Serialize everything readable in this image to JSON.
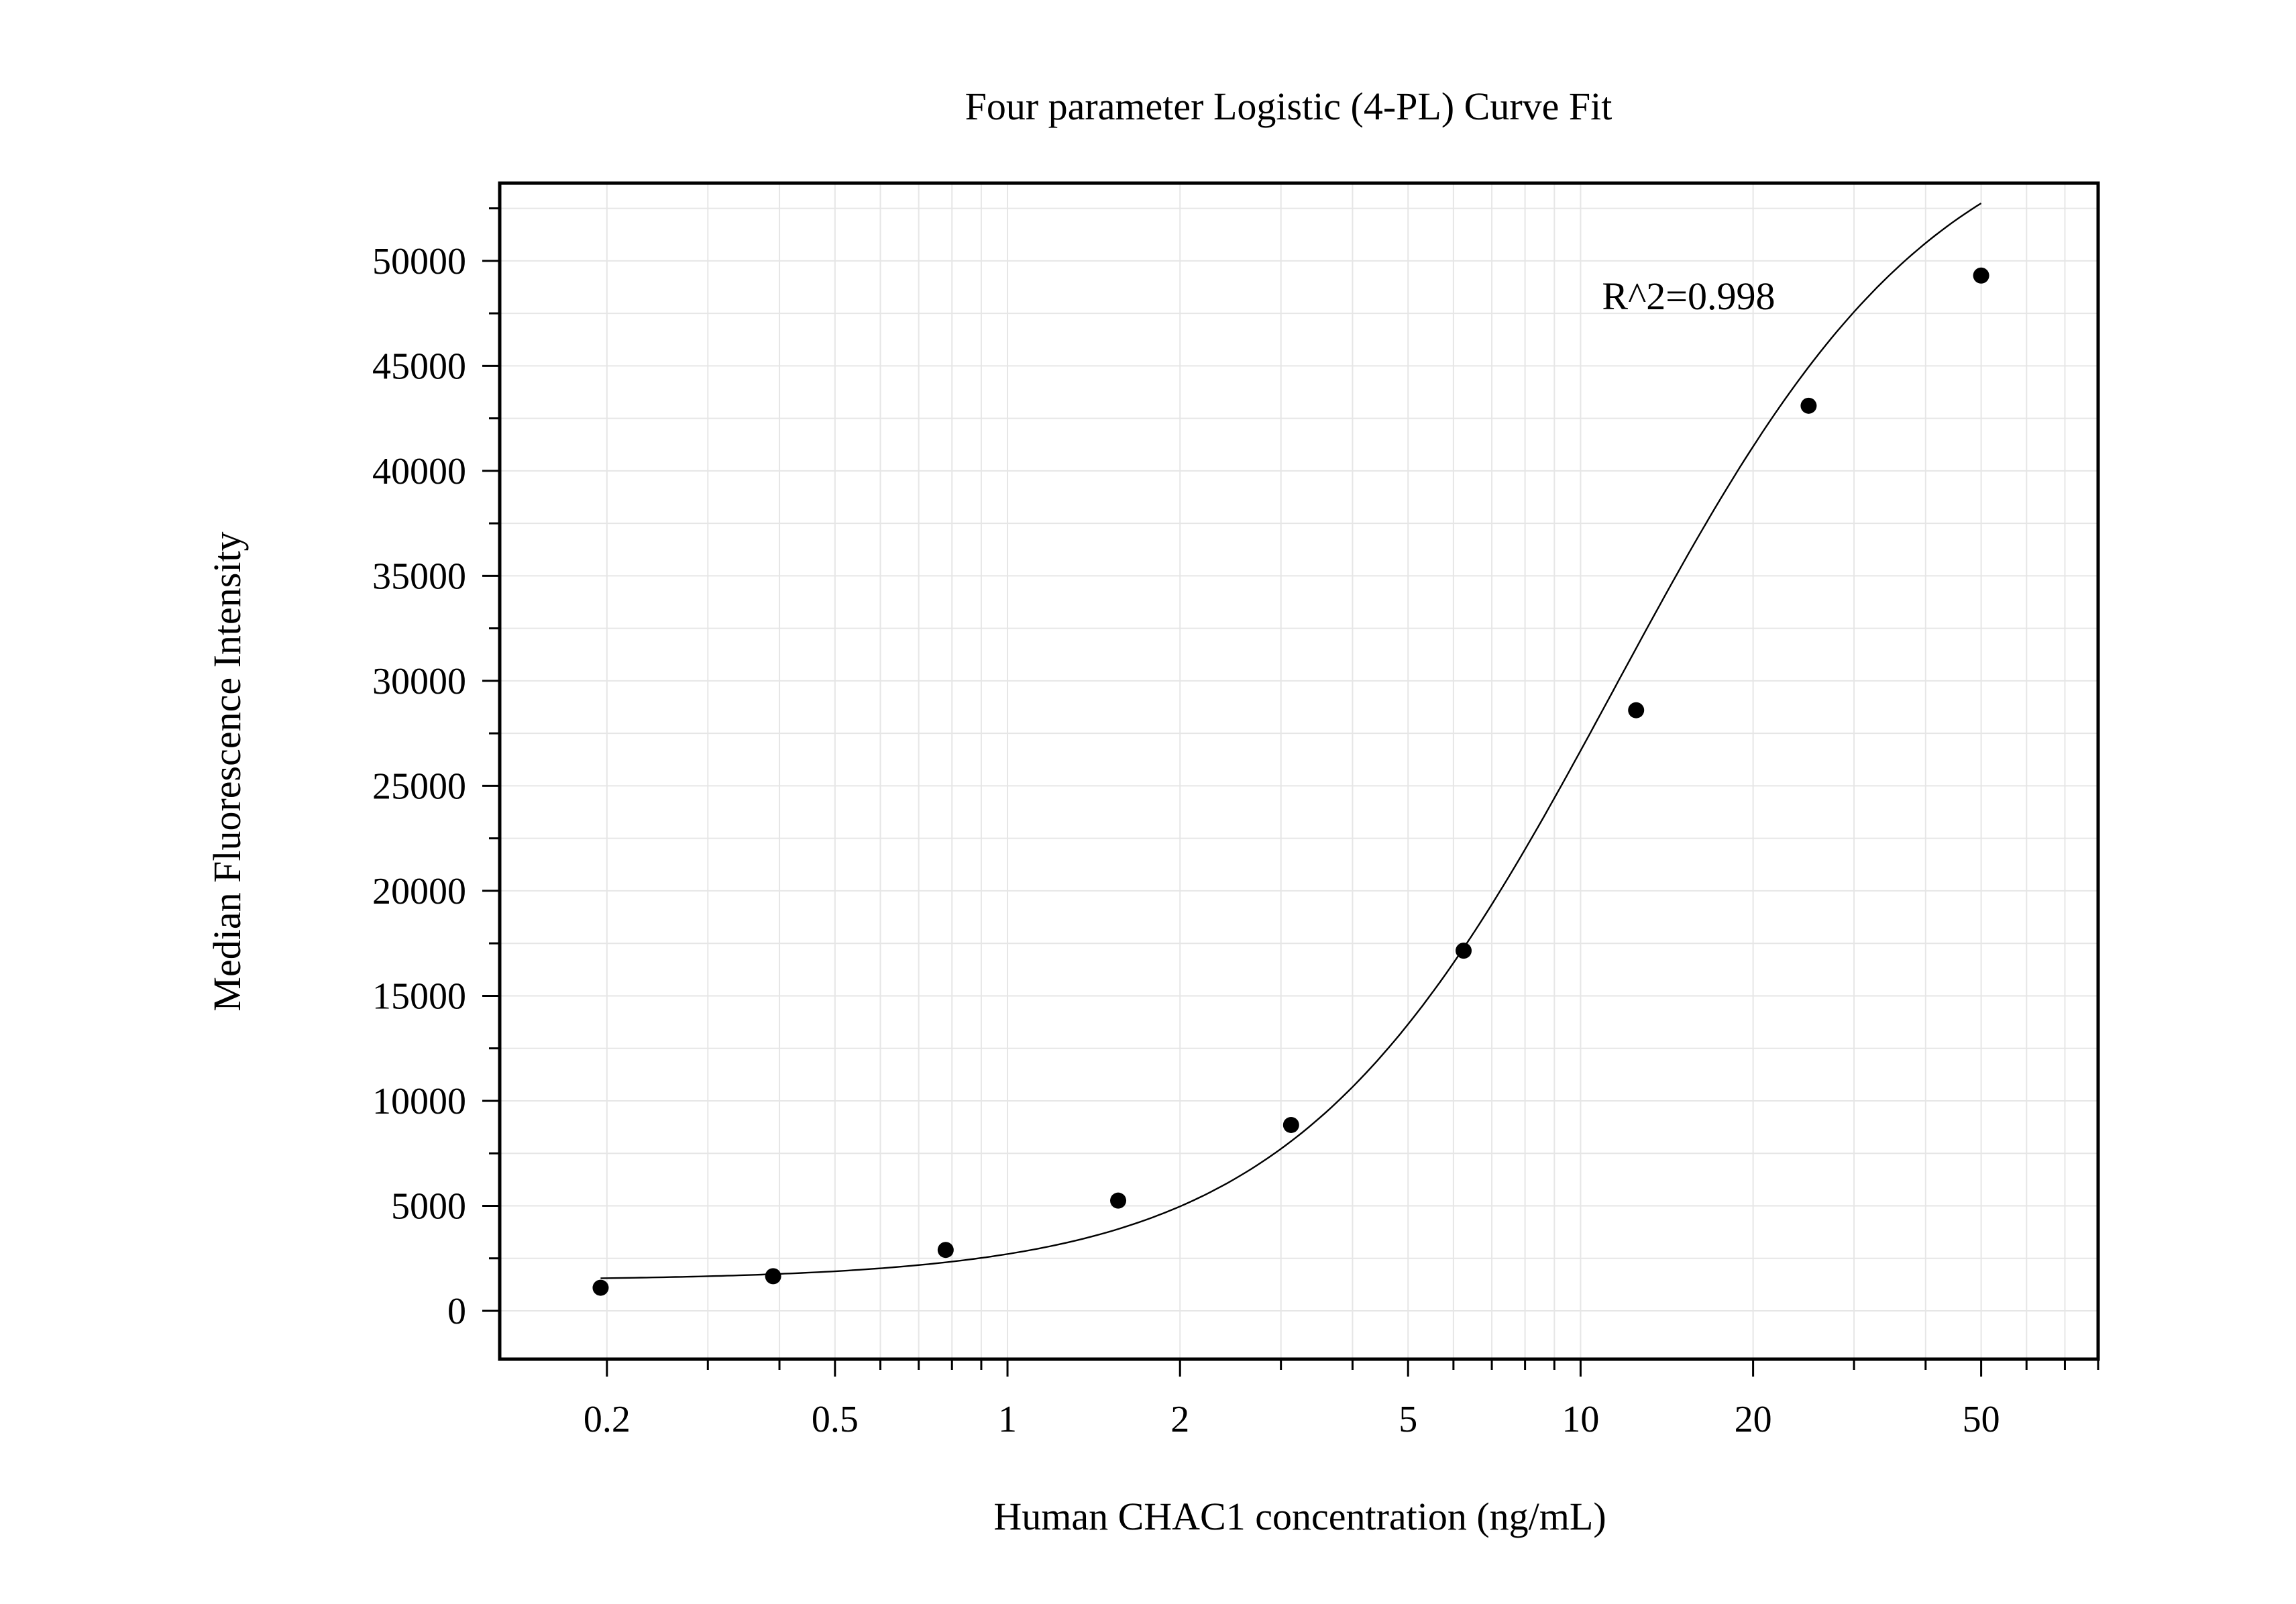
{
  "chart_data": {
    "type": "scatter",
    "title": "Four parameter Logistic (4-PL) Curve Fit",
    "xlabel": "Human CHAC1 concentration (ng/mL)",
    "ylabel": "Median Fluorescence Intensity",
    "x_scale": "log",
    "xlim": [
      0.13,
      80
    ],
    "ylim": [
      -2300,
      53700
    ],
    "x_ticks": [
      0.2,
      0.5,
      1,
      2,
      5,
      10,
      20,
      50
    ],
    "x_tick_labels": [
      "0.2",
      "0.5",
      "1",
      "2",
      "5",
      "10",
      "20",
      "50"
    ],
    "y_ticks": [
      0,
      5000,
      10000,
      15000,
      20000,
      25000,
      30000,
      35000,
      40000,
      45000,
      50000
    ],
    "y_tick_labels": [
      "0",
      "5000",
      "10000",
      "15000",
      "20000",
      "25000",
      "30000",
      "35000",
      "40000",
      "45000",
      "50000"
    ],
    "grid": true,
    "series": [
      {
        "x": [
          0.195,
          0.39,
          0.78,
          1.56,
          3.125,
          6.25,
          12.5,
          25,
          50
        ],
        "y": [
          1100,
          1650,
          2900,
          5250,
          8850,
          17150,
          28600,
          43100,
          49300
        ]
      }
    ],
    "fit_curve": {
      "model": "4-PL",
      "x_range": [
        0.195,
        50
      ],
      "params": {
        "A": 1450,
        "D": 58000,
        "C": 11.5,
        "B": 1.55
      }
    },
    "annotations": [
      {
        "text": "R^2=0.998",
        "x": 10.9,
        "y": 47700
      }
    ],
    "colors": {
      "points": "#000000",
      "curve": "#000000",
      "grid": "#e6e6e6",
      "frame": "#000000"
    }
  }
}
